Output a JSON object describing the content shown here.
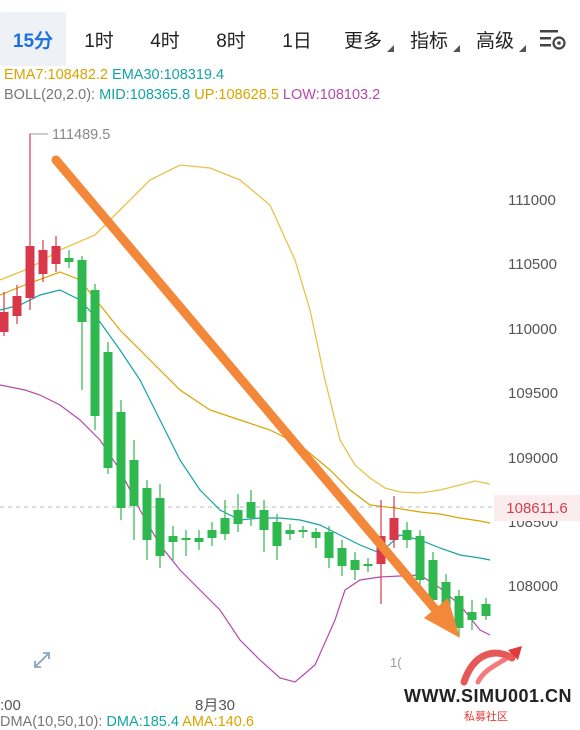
{
  "tabs": [
    {
      "label": "15分"
    },
    {
      "label": "1时"
    },
    {
      "label": "4时"
    },
    {
      "label": "8时"
    },
    {
      "label": "1日"
    },
    {
      "label": "更多"
    },
    {
      "label": "指标"
    },
    {
      "label": "高级"
    }
  ],
  "indicators": {
    "ema7": "EMA7:108482.2",
    "ema30": "EMA30:108319.4",
    "boll_prefix": "BOLL(20,2.0):",
    "mid": "MID:108365.8",
    "up": "UP:108628.5",
    "low": "LOW:108103.2"
  },
  "chart": {
    "high_label": "111489.5",
    "y_ticks": [
      "111000",
      "110500",
      "110000",
      "109500",
      "109000",
      "108500",
      "108000"
    ],
    "current_price": "108611.6",
    "x_labels": [
      ":00",
      "8月30",
      "1("
    ]
  },
  "bottom_indicator": {
    "dma": "DMA(10,50,10):",
    "dma_val": "DMA:185.4",
    "ama_val": "AMA:140.6"
  },
  "watermark": {
    "text": "WWW.SIMU001.CN",
    "sub": "私募社区"
  },
  "colors": {
    "up_candle": "#d8384a",
    "down_candle": "#2eb84e",
    "ema7": "#d9a400",
    "ema30": "#15a3a3",
    "boll_up": "#e8c24a",
    "boll_low": "#b548b0",
    "arrow": "#f3883a",
    "active_tab": "#1d6fe0"
  },
  "icons": [
    "settings-icon",
    "expand-icon",
    "chevron-down-icon",
    "watermark-logo"
  ]
}
